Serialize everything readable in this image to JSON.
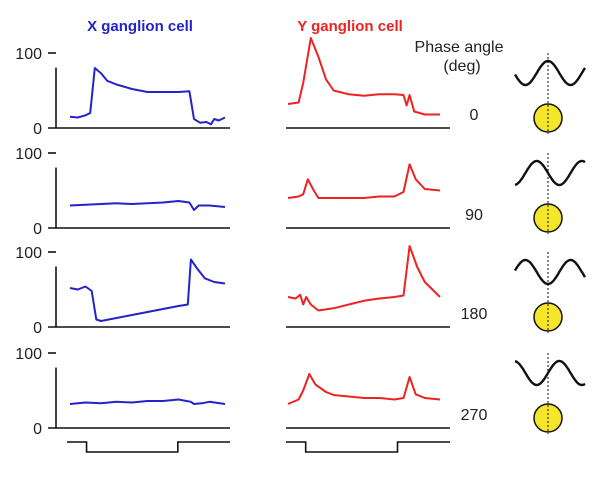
{
  "chart_data": {
    "type": "line",
    "titles": {
      "x_cell": "X ganglion cell",
      "y_cell": "Y ganglion cell"
    },
    "phase_header": [
      "Phase angle",
      "(deg)"
    ],
    "ytick_labels": [
      "100",
      "0"
    ],
    "ylim": [
      0,
      130
    ],
    "colors": {
      "x_cell": "#2323c8",
      "y_cell": "#ee2222",
      "stimulus": "#111111",
      "spot": "#f5e62a"
    },
    "panels": [
      {
        "phase": "0",
        "x_cell": [
          [
            0,
            15
          ],
          [
            0.05,
            14
          ],
          [
            0.1,
            17
          ],
          [
            0.13,
            20
          ],
          [
            0.16,
            80
          ],
          [
            0.2,
            73
          ],
          [
            0.24,
            63
          ],
          [
            0.3,
            58
          ],
          [
            0.4,
            52
          ],
          [
            0.5,
            48
          ],
          [
            0.6,
            48
          ],
          [
            0.7,
            48
          ],
          [
            0.77,
            49
          ],
          [
            0.8,
            12
          ],
          [
            0.84,
            7
          ],
          [
            0.88,
            8
          ],
          [
            0.91,
            5
          ],
          [
            0.93,
            12
          ],
          [
            0.96,
            10
          ],
          [
            1,
            14
          ]
        ],
        "y_cell": [
          [
            0,
            32
          ],
          [
            0.07,
            34
          ],
          [
            0.1,
            60
          ],
          [
            0.15,
            120
          ],
          [
            0.2,
            95
          ],
          [
            0.25,
            65
          ],
          [
            0.3,
            50
          ],
          [
            0.4,
            45
          ],
          [
            0.5,
            43
          ],
          [
            0.6,
            45
          ],
          [
            0.7,
            45
          ],
          [
            0.76,
            44
          ],
          [
            0.78,
            30
          ],
          [
            0.8,
            44
          ],
          [
            0.83,
            22
          ],
          [
            0.9,
            18
          ],
          [
            1,
            18
          ]
        ]
      },
      {
        "phase": "90",
        "x_cell": [
          [
            0,
            30
          ],
          [
            0.1,
            31
          ],
          [
            0.2,
            32
          ],
          [
            0.3,
            33
          ],
          [
            0.4,
            32
          ],
          [
            0.5,
            33
          ],
          [
            0.6,
            34
          ],
          [
            0.7,
            36
          ],
          [
            0.77,
            34
          ],
          [
            0.8,
            24
          ],
          [
            0.83,
            30
          ],
          [
            0.9,
            30
          ],
          [
            1,
            28
          ]
        ],
        "y_cell": [
          [
            0,
            40
          ],
          [
            0.07,
            42
          ],
          [
            0.1,
            45
          ],
          [
            0.13,
            65
          ],
          [
            0.17,
            50
          ],
          [
            0.2,
            40
          ],
          [
            0.3,
            40
          ],
          [
            0.4,
            40
          ],
          [
            0.5,
            40
          ],
          [
            0.6,
            42
          ],
          [
            0.7,
            42
          ],
          [
            0.76,
            48
          ],
          [
            0.8,
            85
          ],
          [
            0.84,
            65
          ],
          [
            0.9,
            52
          ],
          [
            1,
            50
          ]
        ]
      },
      {
        "phase": "180",
        "x_cell": [
          [
            0,
            52
          ],
          [
            0.05,
            50
          ],
          [
            0.1,
            54
          ],
          [
            0.14,
            48
          ],
          [
            0.17,
            10
          ],
          [
            0.2,
            8
          ],
          [
            0.3,
            12
          ],
          [
            0.4,
            16
          ],
          [
            0.5,
            20
          ],
          [
            0.6,
            24
          ],
          [
            0.7,
            28
          ],
          [
            0.76,
            30
          ],
          [
            0.78,
            90
          ],
          [
            0.82,
            78
          ],
          [
            0.87,
            65
          ],
          [
            0.93,
            60
          ],
          [
            1,
            58
          ]
        ],
        "y_cell": [
          [
            0,
            40
          ],
          [
            0.05,
            38
          ],
          [
            0.08,
            43
          ],
          [
            0.1,
            30
          ],
          [
            0.12,
            40
          ],
          [
            0.15,
            30
          ],
          [
            0.2,
            22
          ],
          [
            0.3,
            25
          ],
          [
            0.4,
            30
          ],
          [
            0.5,
            35
          ],
          [
            0.6,
            38
          ],
          [
            0.7,
            40
          ],
          [
            0.76,
            42
          ],
          [
            0.8,
            108
          ],
          [
            0.85,
            80
          ],
          [
            0.9,
            60
          ],
          [
            1,
            40
          ]
        ]
      },
      {
        "phase": "270",
        "x_cell": [
          [
            0,
            32
          ],
          [
            0.1,
            34
          ],
          [
            0.2,
            33
          ],
          [
            0.3,
            35
          ],
          [
            0.4,
            34
          ],
          [
            0.5,
            36
          ],
          [
            0.6,
            36
          ],
          [
            0.7,
            38
          ],
          [
            0.78,
            35
          ],
          [
            0.8,
            32
          ],
          [
            0.85,
            33
          ],
          [
            0.9,
            35
          ],
          [
            1,
            32
          ]
        ],
        "y_cell": [
          [
            0,
            32
          ],
          [
            0.07,
            38
          ],
          [
            0.1,
            50
          ],
          [
            0.14,
            72
          ],
          [
            0.18,
            58
          ],
          [
            0.25,
            48
          ],
          [
            0.3,
            44
          ],
          [
            0.4,
            42
          ],
          [
            0.5,
            40
          ],
          [
            0.6,
            40
          ],
          [
            0.7,
            38
          ],
          [
            0.76,
            40
          ],
          [
            0.8,
            68
          ],
          [
            0.84,
            45
          ],
          [
            0.9,
            40
          ],
          [
            1,
            38
          ]
        ]
      }
    ],
    "stimulus": {
      "on_start": 0.12,
      "on_end": 0.68
    }
  }
}
